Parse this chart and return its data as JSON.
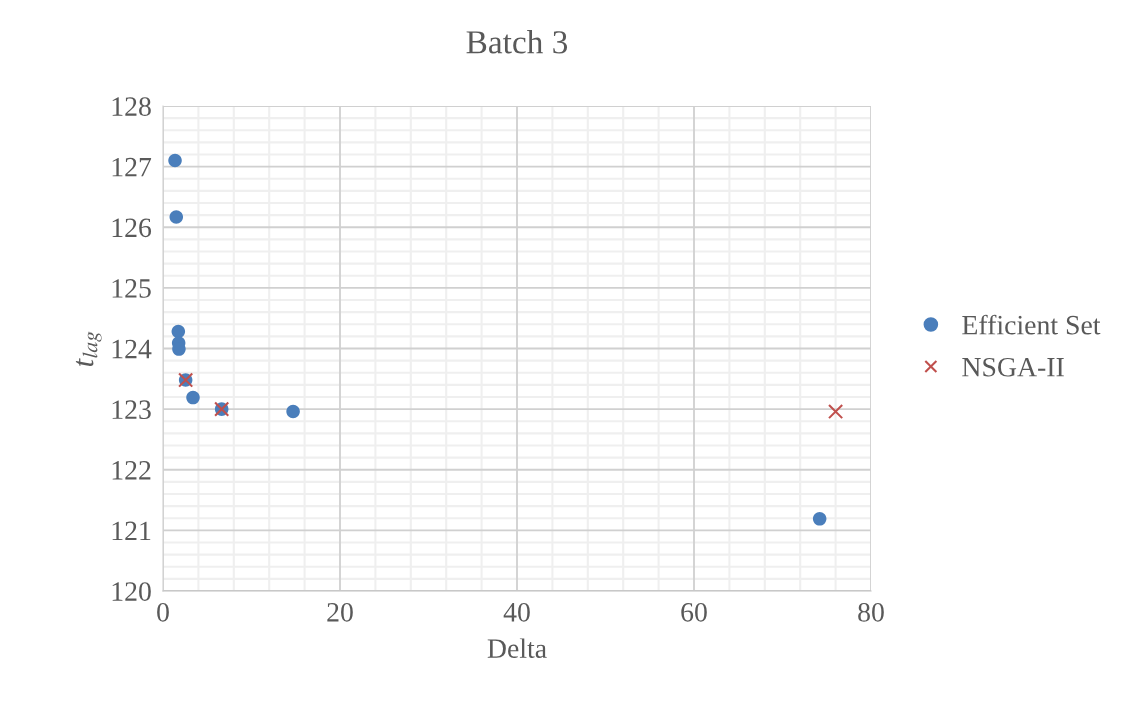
{
  "chart_data": {
    "type": "scatter",
    "title": "Batch 3",
    "xlabel": "Delta",
    "ylabel": "t$_{lag}$",
    "xlim": [
      0,
      80
    ],
    "xticks": [
      0,
      20,
      40,
      60,
      80
    ],
    "ylim": [
      120,
      128
    ],
    "yticks": [
      120,
      121,
      122,
      123,
      124,
      125,
      126,
      127,
      128
    ],
    "grid": true,
    "legend": "right",
    "series": [
      {
        "name": "Efficient Set",
        "color": "#4a7ebb",
        "marker": "circle",
        "x": [
          1.36,
          1.5,
          1.73,
          1.77,
          1.8,
          2.56,
          3.39,
          6.63,
          14.7,
          74.2
        ],
        "values": [
          127.1,
          126.17,
          124.28,
          124.09,
          123.99,
          123.48,
          123.19,
          123.0,
          122.96,
          121.19
        ]
      },
      {
        "name": "NSGA-II",
        "color": "#c0504d",
        "marker": "cross",
        "x": [
          2.56,
          6.63,
          76.0
        ],
        "values": [
          123.48,
          123.0,
          122.96
        ]
      }
    ]
  }
}
